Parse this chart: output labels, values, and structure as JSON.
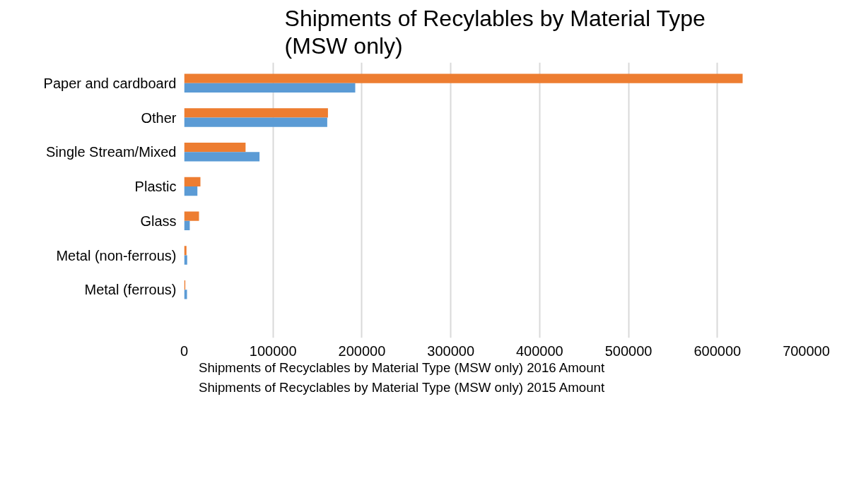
{
  "chart_data": {
    "type": "bar",
    "orientation": "horizontal",
    "title": "Shipments of Recylables by Material Type\n(MSW only)",
    "categories": [
      "Paper and cardboard",
      "Other",
      "Single Stream/Mixed",
      "Plastic",
      "Glass",
      "Metal (non-ferrous)",
      "Metal (ferrous)"
    ],
    "series": [
      {
        "name": "Shipments of Recyclables by Material Type (MSW only) 2016 Amount",
        "color": "#ed7d31",
        "values": [
          628400,
          161800,
          69100,
          18300,
          16700,
          2600,
          1300
        ]
      },
      {
        "name": "Shipments of Recyclables by Material Type (MSW only) 2015 Amount",
        "color": "#5b9bd5",
        "values": [
          192500,
          161000,
          84800,
          14900,
          6300,
          3400,
          3200
        ]
      }
    ],
    "xlim": [
      0,
      700000
    ],
    "xticks": [
      0,
      100000,
      200000,
      300000,
      400000,
      500000,
      600000,
      700000
    ],
    "grid": "x",
    "legend": "bottom"
  }
}
